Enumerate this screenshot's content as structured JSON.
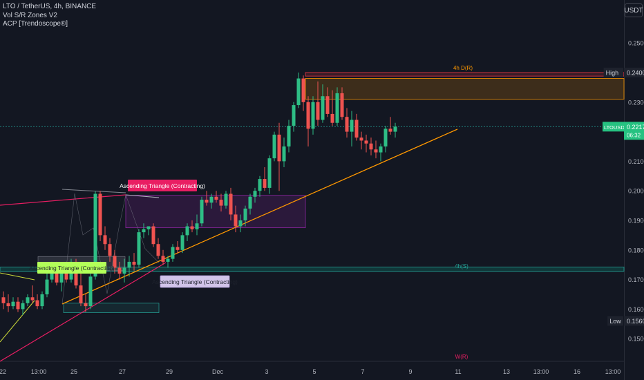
{
  "legend": {
    "symbol_line": "LTO / TetherUS, 4h, BINANCE",
    "indicator_1": "Vol S/R Zones V2",
    "indicator_2": "ACP [Trendoscope®]"
  },
  "axis_currency": "USDT",
  "chart_data": {
    "type": "candlestick",
    "symbol": "LTOUSDT",
    "interval": "4h",
    "exchange": "BINANCE",
    "y_ticks": [
      0.25,
      0.24,
      0.23,
      0.22,
      0.21,
      0.2,
      0.19,
      0.18,
      0.17,
      0.16,
      0.15
    ],
    "y_tick_labels": [
      "0.2500",
      "0.2400",
      "0.2300",
      "0.2200",
      "0.2100",
      "0.2000",
      "0.1900",
      "0.1800",
      "0.1700",
      "0.1600",
      "0.1500"
    ],
    "ylim": [
      0.1425,
      0.2595
    ],
    "x_tick_labels": [
      "22",
      "13:00",
      "25",
      "27",
      "29",
      "Dec",
      "3",
      "5",
      "7",
      "9",
      "11",
      "13",
      "13:00",
      "16",
      "13:00"
    ],
    "price_labels": {
      "high": {
        "label": "High",
        "value": "0.2400",
        "color": "#b2b5be"
      },
      "low": {
        "label": "Low",
        "value": "0.1560",
        "color": "#b2b5be"
      },
      "last": {
        "label": "LTOUSDT",
        "value": "0.2217",
        "countdown": "06:32",
        "color": "#26c281"
      }
    },
    "annotations": {
      "zone_r": "4h D(R)",
      "zone_s": "4h(S)",
      "bottom_r": "W(R)",
      "pattern_1": "Ascending Triangle (Contracting)",
      "pattern_2": "Ascending Triangle (Contracting)",
      "pattern_3": "Ascending Triangle (Contracting)"
    },
    "candles": [
      {
        "o": 0.164,
        "h": 0.166,
        "l": 0.16,
        "c": 0.162
      },
      {
        "o": 0.162,
        "h": 0.165,
        "l": 0.159,
        "c": 0.161
      },
      {
        "o": 0.161,
        "h": 0.164,
        "l": 0.16,
        "c": 0.1625
      },
      {
        "o": 0.1625,
        "h": 0.164,
        "l": 0.159,
        "c": 0.16
      },
      {
        "o": 0.16,
        "h": 0.163,
        "l": 0.158,
        "c": 0.162
      },
      {
        "o": 0.162,
        "h": 0.165,
        "l": 0.161,
        "c": 0.164
      },
      {
        "o": 0.164,
        "h": 0.168,
        "l": 0.162,
        "c": 0.163
      },
      {
        "o": 0.163,
        "h": 0.165,
        "l": 0.16,
        "c": 0.161
      },
      {
        "o": 0.161,
        "h": 0.166,
        "l": 0.16,
        "c": 0.165
      },
      {
        "o": 0.165,
        "h": 0.172,
        "l": 0.164,
        "c": 0.17
      },
      {
        "o": 0.17,
        "h": 0.176,
        "l": 0.169,
        "c": 0.175
      },
      {
        "o": 0.175,
        "h": 0.176,
        "l": 0.168,
        "c": 0.169
      },
      {
        "o": 0.169,
        "h": 0.174,
        "l": 0.166,
        "c": 0.173
      },
      {
        "o": 0.173,
        "h": 0.176,
        "l": 0.169,
        "c": 0.17
      },
      {
        "o": 0.17,
        "h": 0.177,
        "l": 0.169,
        "c": 0.176
      },
      {
        "o": 0.176,
        "h": 0.177,
        "l": 0.167,
        "c": 0.168
      },
      {
        "o": 0.168,
        "h": 0.172,
        "l": 0.161,
        "c": 0.162
      },
      {
        "o": 0.162,
        "h": 0.165,
        "l": 0.159,
        "c": 0.161
      },
      {
        "o": 0.161,
        "h": 0.172,
        "l": 0.16,
        "c": 0.171
      },
      {
        "o": 0.171,
        "h": 0.2,
        "l": 0.17,
        "c": 0.199
      },
      {
        "o": 0.199,
        "h": 0.2,
        "l": 0.183,
        "c": 0.185
      },
      {
        "o": 0.185,
        "h": 0.188,
        "l": 0.18,
        "c": 0.182
      },
      {
        "o": 0.182,
        "h": 0.184,
        "l": 0.176,
        "c": 0.178
      },
      {
        "o": 0.178,
        "h": 0.18,
        "l": 0.172,
        "c": 0.174
      },
      {
        "o": 0.174,
        "h": 0.176,
        "l": 0.17,
        "c": 0.172
      },
      {
        "o": 0.172,
        "h": 0.177,
        "l": 0.169,
        "c": 0.174
      },
      {
        "o": 0.174,
        "h": 0.178,
        "l": 0.171,
        "c": 0.176
      },
      {
        "o": 0.176,
        "h": 0.179,
        "l": 0.173,
        "c": 0.175
      },
      {
        "o": 0.175,
        "h": 0.187,
        "l": 0.174,
        "c": 0.186
      },
      {
        "o": 0.186,
        "h": 0.189,
        "l": 0.184,
        "c": 0.187
      },
      {
        "o": 0.187,
        "h": 0.188,
        "l": 0.185,
        "c": 0.188
      },
      {
        "o": 0.188,
        "h": 0.189,
        "l": 0.181,
        "c": 0.182
      },
      {
        "o": 0.182,
        "h": 0.184,
        "l": 0.177,
        "c": 0.178
      },
      {
        "o": 0.178,
        "h": 0.18,
        "l": 0.175,
        "c": 0.176
      },
      {
        "o": 0.176,
        "h": 0.178,
        "l": 0.174,
        "c": 0.177
      },
      {
        "o": 0.177,
        "h": 0.182,
        "l": 0.176,
        "c": 0.181
      },
      {
        "o": 0.181,
        "h": 0.183,
        "l": 0.179,
        "c": 0.18
      },
      {
        "o": 0.18,
        "h": 0.186,
        "l": 0.179,
        "c": 0.185
      },
      {
        "o": 0.185,
        "h": 0.189,
        "l": 0.183,
        "c": 0.188
      },
      {
        "o": 0.188,
        "h": 0.19,
        "l": 0.186,
        "c": 0.187
      },
      {
        "o": 0.187,
        "h": 0.192,
        "l": 0.185,
        "c": 0.189
      },
      {
        "o": 0.189,
        "h": 0.198,
        "l": 0.188,
        "c": 0.197
      },
      {
        "o": 0.197,
        "h": 0.2,
        "l": 0.195,
        "c": 0.196
      },
      {
        "o": 0.196,
        "h": 0.199,
        "l": 0.194,
        "c": 0.198
      },
      {
        "o": 0.198,
        "h": 0.2,
        "l": 0.196,
        "c": 0.197
      },
      {
        "o": 0.197,
        "h": 0.199,
        "l": 0.193,
        "c": 0.195
      },
      {
        "o": 0.195,
        "h": 0.2,
        "l": 0.194,
        "c": 0.199
      },
      {
        "o": 0.199,
        "h": 0.201,
        "l": 0.19,
        "c": 0.192
      },
      {
        "o": 0.192,
        "h": 0.195,
        "l": 0.186,
        "c": 0.188
      },
      {
        "o": 0.188,
        "h": 0.192,
        "l": 0.186,
        "c": 0.19
      },
      {
        "o": 0.19,
        "h": 0.195,
        "l": 0.188,
        "c": 0.194
      },
      {
        "o": 0.194,
        "h": 0.199,
        "l": 0.192,
        "c": 0.198
      },
      {
        "o": 0.198,
        "h": 0.201,
        "l": 0.196,
        "c": 0.2
      },
      {
        "o": 0.2,
        "h": 0.205,
        "l": 0.198,
        "c": 0.204
      },
      {
        "o": 0.204,
        "h": 0.208,
        "l": 0.2,
        "c": 0.201
      },
      {
        "o": 0.201,
        "h": 0.212,
        "l": 0.199,
        "c": 0.211
      },
      {
        "o": 0.211,
        "h": 0.22,
        "l": 0.21,
        "c": 0.219
      },
      {
        "o": 0.219,
        "h": 0.223,
        "l": 0.2,
        "c": 0.21
      },
      {
        "o": 0.21,
        "h": 0.218,
        "l": 0.208,
        "c": 0.215
      },
      {
        "o": 0.215,
        "h": 0.224,
        "l": 0.213,
        "c": 0.222
      },
      {
        "o": 0.222,
        "h": 0.23,
        "l": 0.22,
        "c": 0.229
      },
      {
        "o": 0.229,
        "h": 0.24,
        "l": 0.228,
        "c": 0.238
      },
      {
        "o": 0.238,
        "h": 0.239,
        "l": 0.227,
        "c": 0.23
      },
      {
        "o": 0.23,
        "h": 0.232,
        "l": 0.215,
        "c": 0.221
      },
      {
        "o": 0.221,
        "h": 0.232,
        "l": 0.219,
        "c": 0.23
      },
      {
        "o": 0.23,
        "h": 0.237,
        "l": 0.222,
        "c": 0.224
      },
      {
        "o": 0.224,
        "h": 0.236,
        "l": 0.223,
        "c": 0.232
      },
      {
        "o": 0.232,
        "h": 0.235,
        "l": 0.225,
        "c": 0.226
      },
      {
        "o": 0.226,
        "h": 0.234,
        "l": 0.222,
        "c": 0.223
      },
      {
        "o": 0.223,
        "h": 0.235,
        "l": 0.222,
        "c": 0.233
      },
      {
        "o": 0.233,
        "h": 0.235,
        "l": 0.224,
        "c": 0.225
      },
      {
        "o": 0.225,
        "h": 0.228,
        "l": 0.218,
        "c": 0.22
      },
      {
        "o": 0.22,
        "h": 0.227,
        "l": 0.215,
        "c": 0.224
      },
      {
        "o": 0.224,
        "h": 0.226,
        "l": 0.217,
        "c": 0.218
      },
      {
        "o": 0.218,
        "h": 0.22,
        "l": 0.214,
        "c": 0.217
      },
      {
        "o": 0.217,
        "h": 0.219,
        "l": 0.213,
        "c": 0.216
      },
      {
        "o": 0.216,
        "h": 0.218,
        "l": 0.212,
        "c": 0.214
      },
      {
        "o": 0.214,
        "h": 0.217,
        "l": 0.211,
        "c": 0.213
      },
      {
        "o": 0.213,
        "h": 0.216,
        "l": 0.21,
        "c": 0.215
      },
      {
        "o": 0.215,
        "h": 0.222,
        "l": 0.213,
        "c": 0.221
      },
      {
        "o": 0.221,
        "h": 0.225,
        "l": 0.219,
        "c": 0.22
      },
      {
        "o": 0.22,
        "h": 0.223,
        "l": 0.218,
        "c": 0.2217
      }
    ]
  }
}
